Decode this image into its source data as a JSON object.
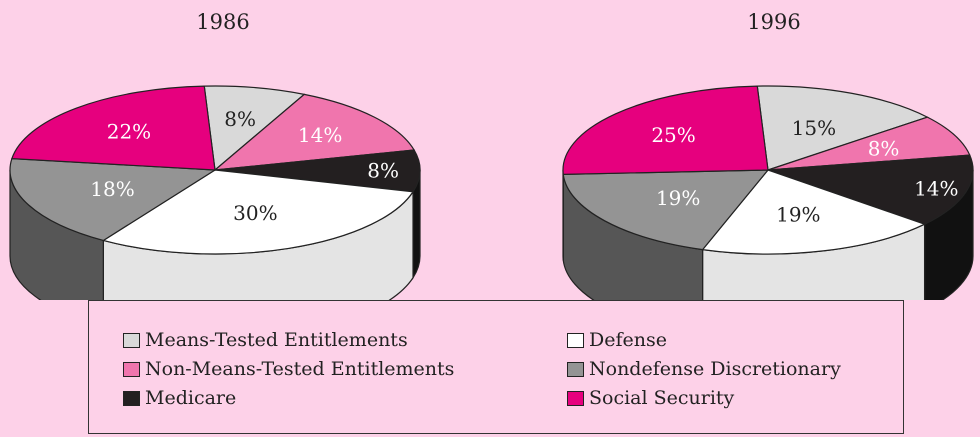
{
  "chart_data": [
    {
      "type": "pie",
      "title": "1986",
      "categories": [
        "Means-Tested Entitlements",
        "Non-Means-Tested Entitlements",
        "Medicare",
        "Defense",
        "Nondefense Discretionary",
        "Social Security"
      ],
      "values": [
        8,
        14,
        8,
        30,
        18,
        22
      ],
      "labels": [
        "8%",
        "14%",
        "8%",
        "30%",
        "18%",
        "22%"
      ]
    },
    {
      "type": "pie",
      "title": "1996",
      "categories": [
        "Means-Tested Entitlements",
        "Non-Means-Tested Entitlements",
        "Medicare",
        "Defense",
        "Nondefense Discretionary",
        "Social Security"
      ],
      "values": [
        15,
        8,
        14,
        19,
        19,
        25
      ],
      "labels": [
        "15%",
        "8%",
        "14%",
        "19%",
        "19%",
        "25%"
      ]
    }
  ],
  "legend": [
    {
      "label": "Means-Tested Entitlements",
      "color": "#d9d9d9"
    },
    {
      "label": "Non-Means-Tested Entitlements",
      "color": "#f075ad"
    },
    {
      "label": "Medicare",
      "color": "#231f20"
    },
    {
      "label": "Defense",
      "color": "#ffffff"
    },
    {
      "label": "Nondefense Discretionary",
      "color": "#949494"
    },
    {
      "label": "Social Security",
      "color": "#e6007e"
    }
  ],
  "colors": {
    "Means-Tested Entitlements": "#d9d9d9",
    "Non-Means-Tested Entitlements": "#f075ad",
    "Medicare": "#231f20",
    "Defense": "#ffffff",
    "Nondefense Discretionary": "#949494",
    "Social Security": "#e6007e"
  },
  "side_colors": {
    "Means-Tested Entitlements": "#e2e2e2",
    "Non-Means-Tested Entitlements": "#c04a86",
    "Medicare": "#111111",
    "Defense": "#e4e4e4",
    "Nondefense Discretionary": "#565656",
    "Social Security": "#9b0058"
  }
}
